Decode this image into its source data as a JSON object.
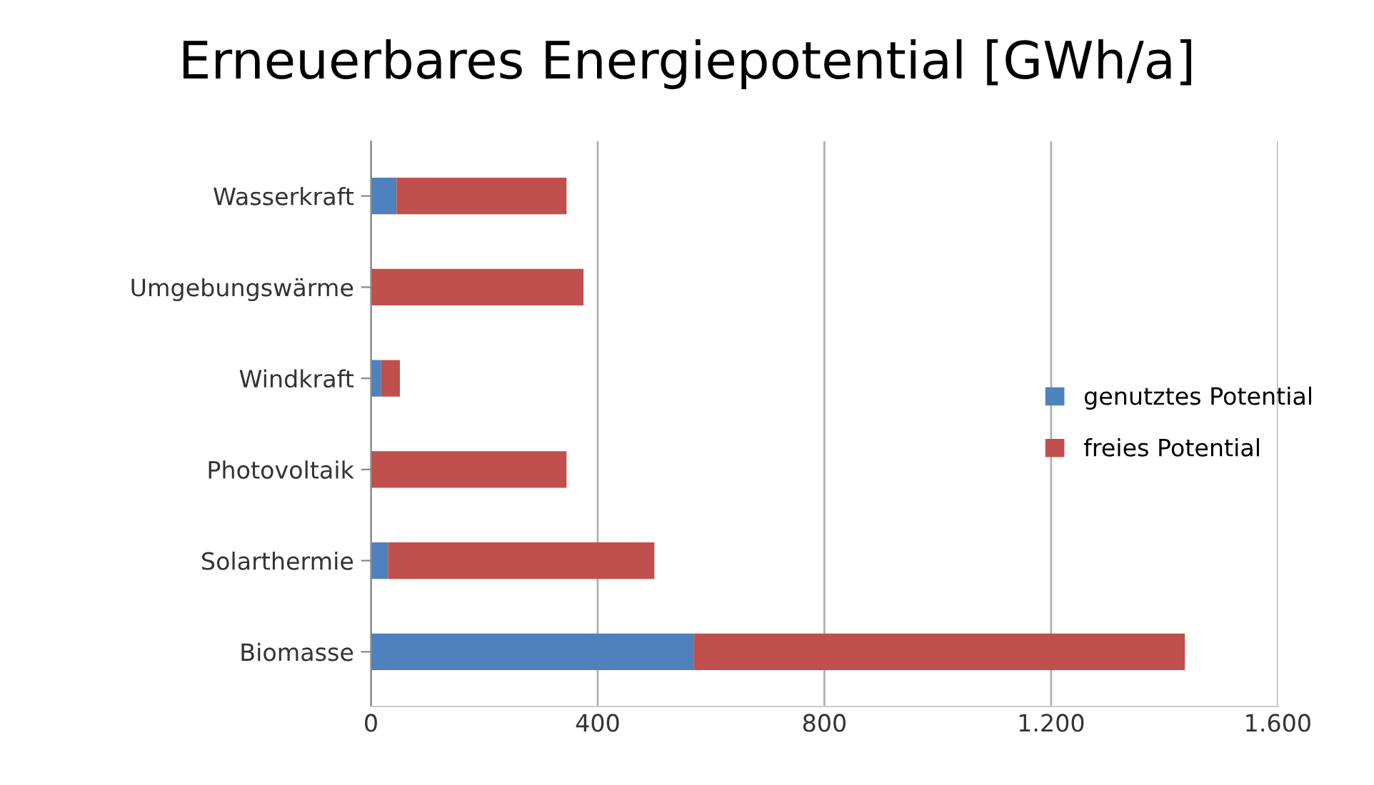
{
  "chart_data": {
    "type": "bar",
    "orientation": "horizontal",
    "stacked": true,
    "title": "Erneuerbares Energiepotential [GWh/a]",
    "categories": [
      "Wasserkraft",
      "Umgebungswärme",
      "Windkraft",
      "Photovoltaik",
      "Solarthermie",
      "Biomasse"
    ],
    "series": [
      {
        "name": "genutztes Potential",
        "color": "#4f81bd",
        "values": [
          45,
          0,
          18,
          0,
          30,
          570
        ]
      },
      {
        "name": "freies Potential",
        "color": "#c0504d",
        "values": [
          300,
          375,
          33,
          345,
          470,
          866
        ]
      }
    ],
    "xlim": [
      0,
      1600
    ],
    "xticks": [
      0,
      400,
      800,
      {
        "value": 1200,
        "label": "1.200"
      },
      {
        "value": 1600,
        "label": "1.600"
      }
    ],
    "grid": "x",
    "legend": "right"
  }
}
